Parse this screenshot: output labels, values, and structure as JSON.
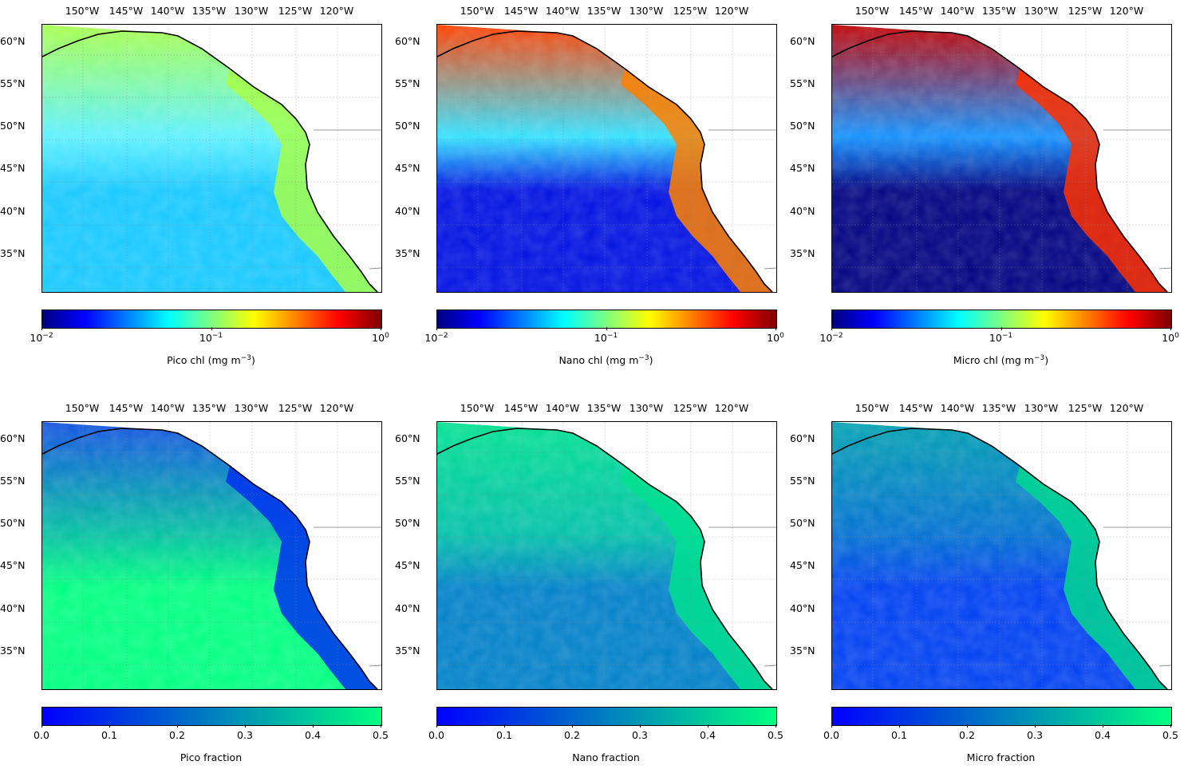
{
  "lon_ticks": [
    "150°W",
    "145°W",
    "140°W",
    "135°W",
    "130°W",
    "125°W",
    "120°W"
  ],
  "lat_ticks": [
    "60°N",
    "55°N",
    "50°N",
    "45°N",
    "40°N",
    "35°N"
  ],
  "colors": {
    "jet": [
      "#00007f",
      "#0000ff",
      "#007fff",
      "#00ffff",
      "#7fff7f",
      "#ffff00",
      "#ff7f00",
      "#ff0000",
      "#7f0000"
    ],
    "winter": [
      "#0000ff",
      "#00ff80"
    ],
    "land": "#ffffff",
    "coast": "#000000"
  },
  "panels": [
    {
      "id": "pico-chl",
      "scale": "log",
      "cmap": "jet",
      "tick_labels": [
        {
          "base": "10",
          "exp": "−2"
        },
        {
          "base": "10",
          "exp": "−1"
        },
        {
          "base": "10",
          "exp": "0"
        }
      ],
      "label": "Pico chl (mg m",
      "label_exp": "−3",
      "label_end": ")",
      "fields": {
        "open_ocean": "#17c8ff",
        "mid": "#5cf0ff",
        "north": "#a6ff4a",
        "coastal": "#a6ff4a"
      }
    },
    {
      "id": "nano-chl",
      "scale": "log",
      "cmap": "jet",
      "tick_labels": [
        {
          "base": "10",
          "exp": "−2"
        },
        {
          "base": "10",
          "exp": "−1"
        },
        {
          "base": "10",
          "exp": "0"
        }
      ],
      "label": "Nano chl (mg m",
      "label_exp": "−3",
      "label_end": ")",
      "fields": {
        "open_ocean": "#0010e0",
        "mid": "#30e0ff",
        "north": "#ff4000",
        "coastal": "#ff8000"
      }
    },
    {
      "id": "micro-chl",
      "scale": "log",
      "cmap": "jet",
      "tick_labels": [
        {
          "base": "10",
          "exp": "−2"
        },
        {
          "base": "10",
          "exp": "−1"
        },
        {
          "base": "10",
          "exp": "0"
        }
      ],
      "label": "Micro chl (mg m",
      "label_exp": "−3",
      "label_end": ")",
      "fields": {
        "open_ocean": "#00007f",
        "mid": "#1090ff",
        "north": "#c00000",
        "coastal": "#ff3000"
      }
    },
    {
      "id": "pico-frac",
      "scale": "linear",
      "cmap": "winter",
      "tick_labels": [
        "0.0",
        "0.1",
        "0.2",
        "0.3",
        "0.4",
        "0.5"
      ],
      "label": "Pico fraction",
      "label_exp": "",
      "label_end": "",
      "fields": {
        "open_ocean": "#00ff80",
        "mid": "#00c0a0",
        "north": "#1050e0",
        "coastal": "#0030f0"
      }
    },
    {
      "id": "nano-frac",
      "scale": "linear",
      "cmap": "winter",
      "tick_labels": [
        "0.0",
        "0.1",
        "0.2",
        "0.3",
        "0.4",
        "0.5"
      ],
      "label": "Nano fraction",
      "label_exp": "",
      "label_end": "",
      "fields": {
        "open_ocean": "#0080c8",
        "mid": "#00c0a8",
        "north": "#00e090",
        "coastal": "#00e090"
      }
    },
    {
      "id": "micro-frac",
      "scale": "linear",
      "cmap": "winter",
      "tick_labels": [
        "0.0",
        "0.1",
        "0.2",
        "0.3",
        "0.4",
        "0.5"
      ],
      "label": "Micro fraction",
      "label_exp": "",
      "label_end": "",
      "fields": {
        "open_ocean": "#0040f0",
        "mid": "#0070d0",
        "north": "#00a0b0",
        "coastal": "#00d890"
      }
    }
  ]
}
